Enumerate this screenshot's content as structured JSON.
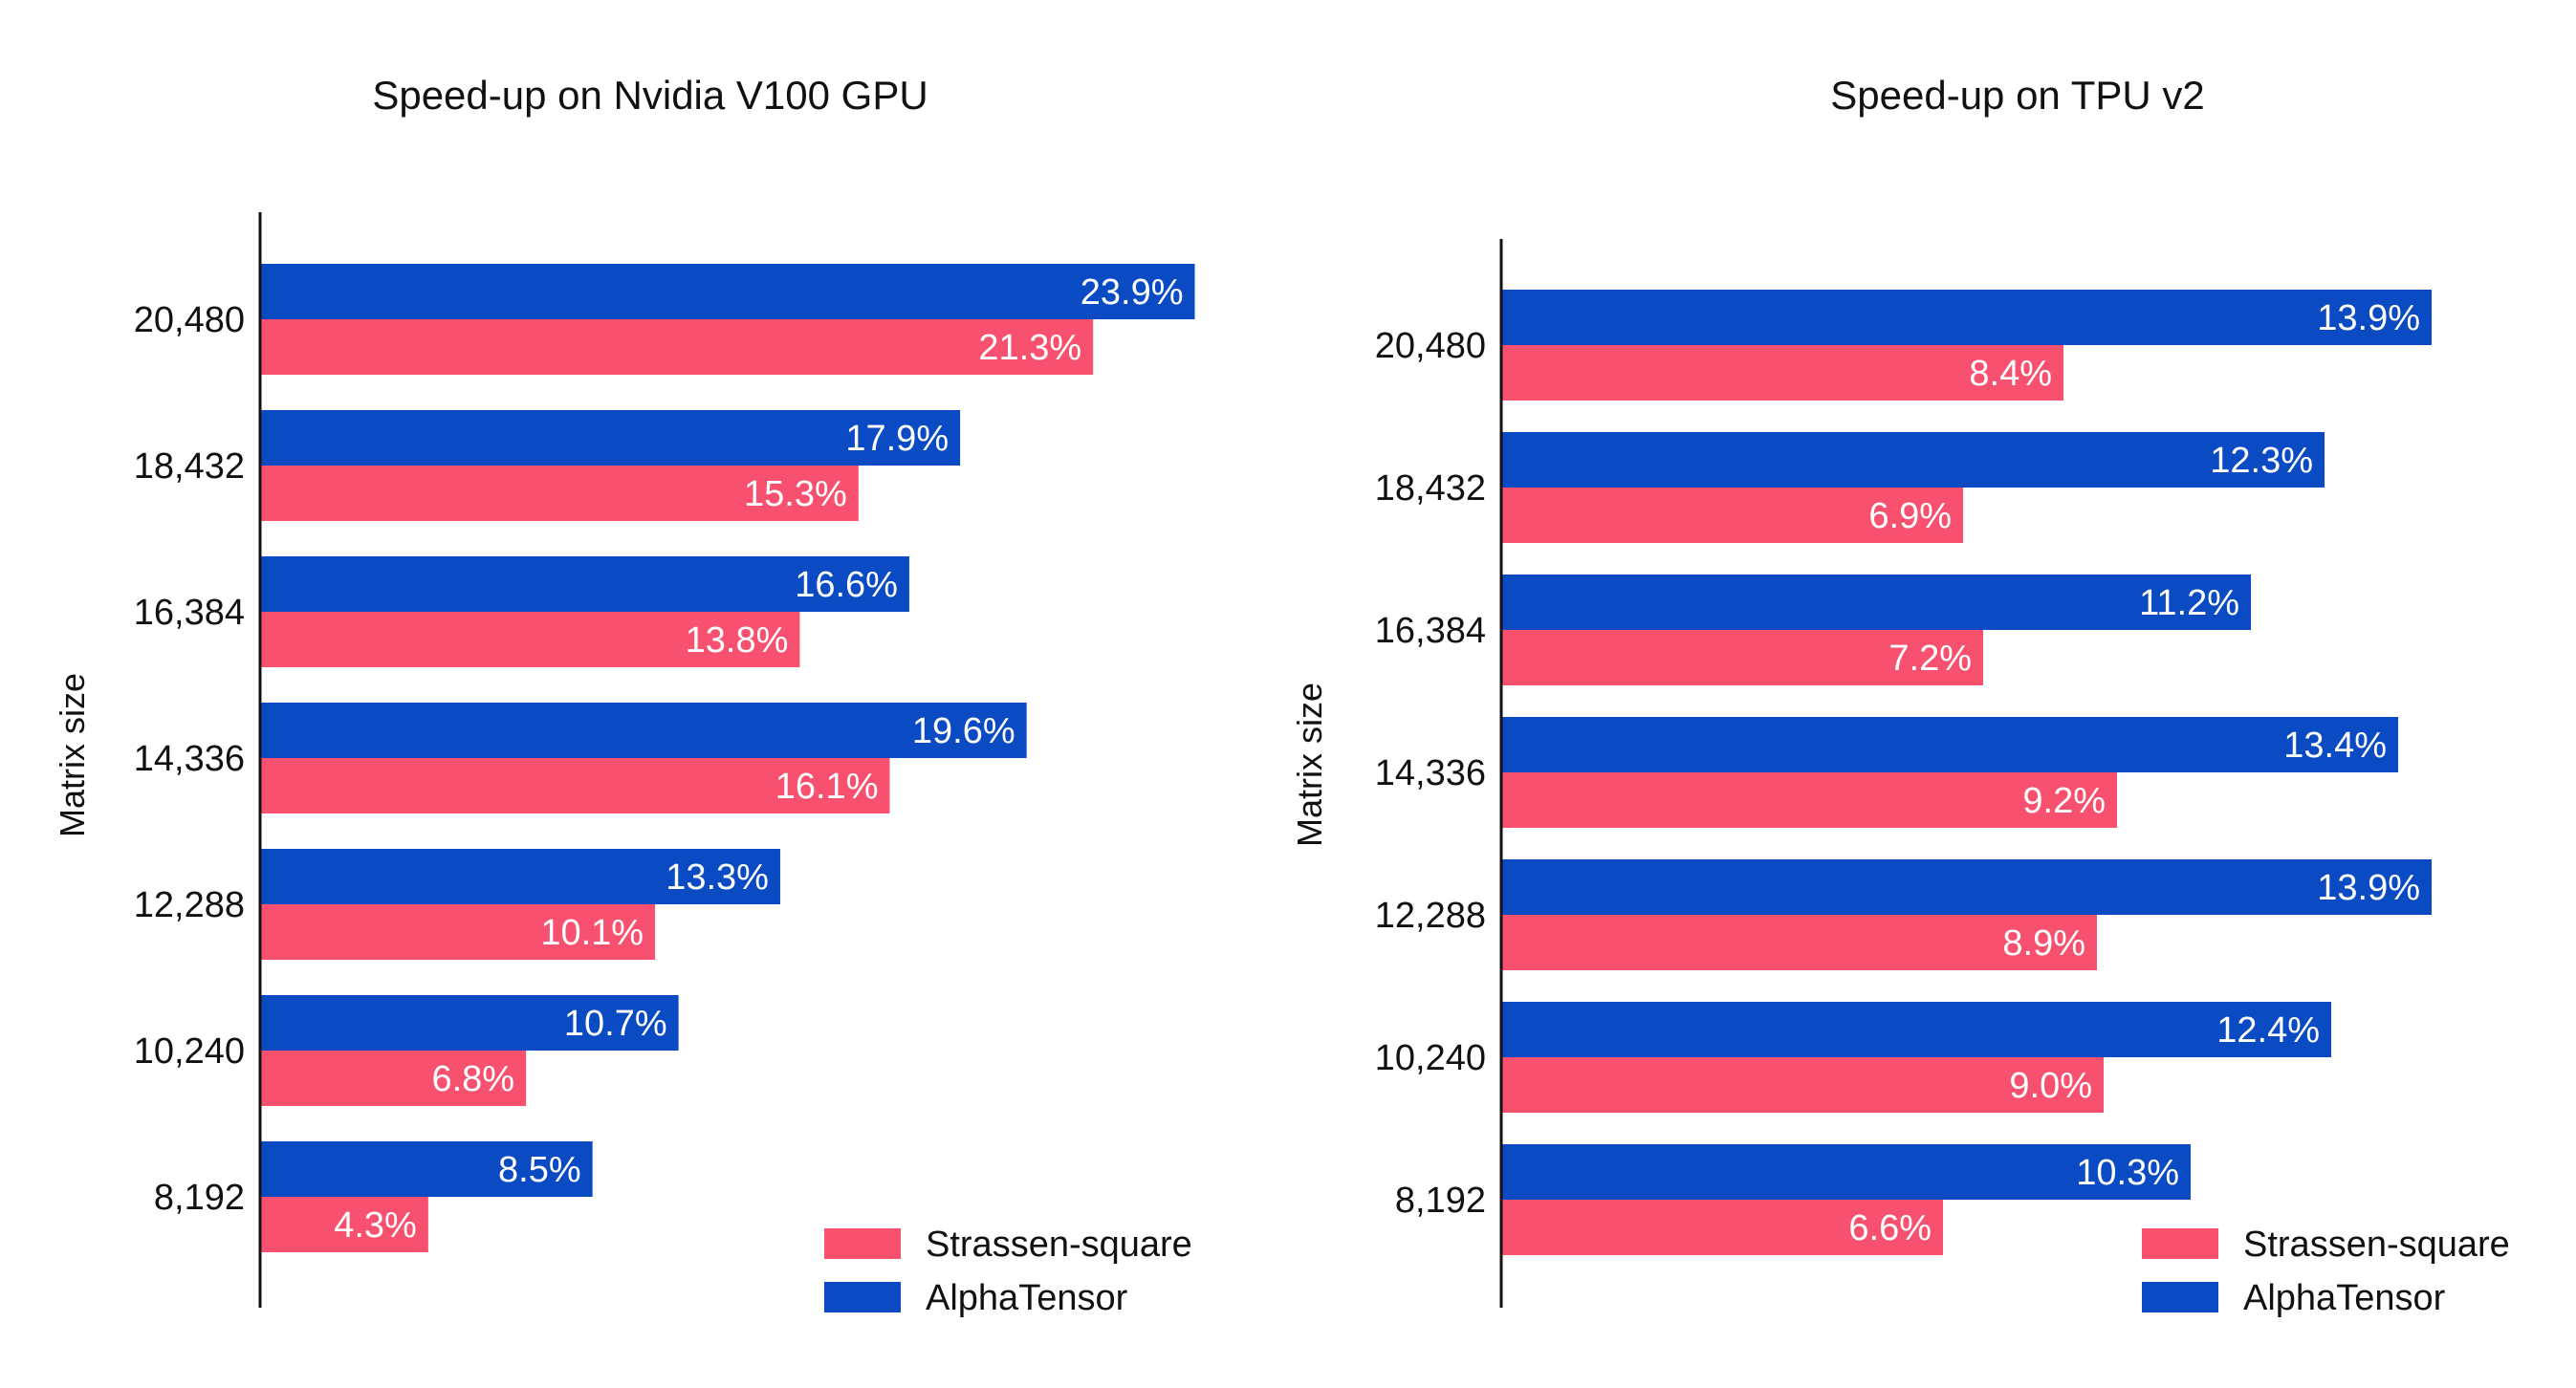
{
  "chart_data": [
    {
      "type": "bar",
      "orientation": "horizontal",
      "title": "Speed-up on Nvidia V100 GPU",
      "ylabel": "Matrix size",
      "xlabel": "",
      "categories": [
        "20,480",
        "18,432",
        "16,384",
        "14,336",
        "12,288",
        "10,240",
        "8,192"
      ],
      "series": [
        {
          "name": "AlphaTensor",
          "color": "#0a4bc4",
          "values": [
            23.9,
            17.9,
            16.6,
            19.6,
            13.3,
            10.7,
            8.5
          ],
          "labels": [
            "23.9%",
            "17.9%",
            "16.6%",
            "19.6%",
            "13.3%",
            "10.7%",
            "8.5%"
          ]
        },
        {
          "name": "Strassen-square",
          "color": "#f7516f",
          "values": [
            21.3,
            15.3,
            13.8,
            16.1,
            10.1,
            6.8,
            4.3
          ],
          "labels": [
            "21.3%",
            "15.3%",
            "13.8%",
            "16.1%",
            "10.1%",
            "6.8%",
            "4.3%"
          ]
        }
      ],
      "xlim": [
        0,
        26
      ],
      "legend_position": "bottom-right",
      "legend_order": [
        "Strassen-square",
        "AlphaTensor"
      ],
      "grid": false
    },
    {
      "type": "bar",
      "orientation": "horizontal",
      "title": "Speed-up on TPU v2",
      "ylabel": "Matrix size",
      "xlabel": "",
      "categories": [
        "20,480",
        "18,432",
        "16,384",
        "14,336",
        "12,288",
        "10,240",
        "8,192"
      ],
      "series": [
        {
          "name": "AlphaTensor",
          "color": "#0a4bc4",
          "values": [
            13.9,
            12.3,
            11.2,
            13.4,
            13.9,
            12.4,
            10.3
          ],
          "labels": [
            "13.9%",
            "12.3%",
            "11.2%",
            "13.4%",
            "13.9%",
            "12.4%",
            "10.3%"
          ]
        },
        {
          "name": "Strassen-square",
          "color": "#f7516f",
          "values": [
            8.4,
            6.9,
            7.2,
            9.2,
            8.9,
            9.0,
            6.6
          ],
          "labels": [
            "8.4%",
            "6.9%",
            "7.2%",
            "9.2%",
            "8.9%",
            "9.0%",
            "6.6%"
          ]
        }
      ],
      "xlim": [
        0,
        15
      ],
      "legend_position": "bottom-right",
      "legend_order": [
        "Strassen-square",
        "AlphaTensor"
      ],
      "grid": false
    }
  ]
}
